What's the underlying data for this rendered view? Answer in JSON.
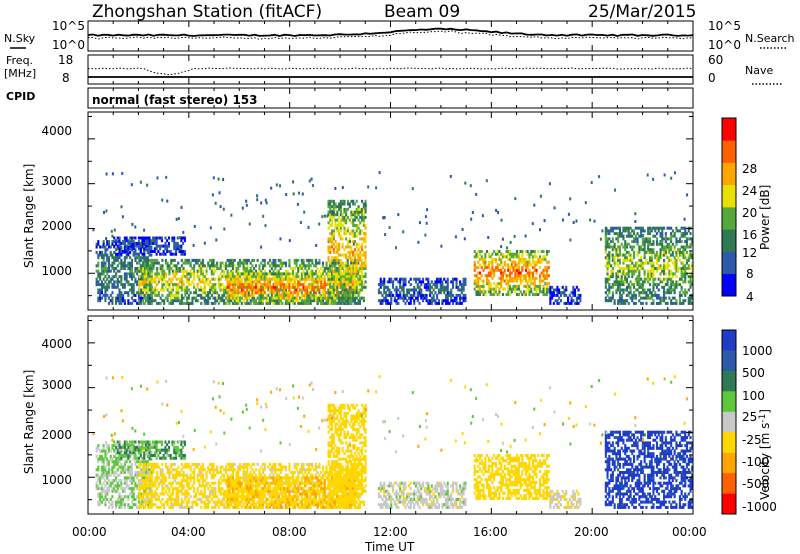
{
  "header": {
    "station": "Zhongshan Station (fitACF)",
    "beam": "Beam 09",
    "date": "25/Mar/2015"
  },
  "noise_panel": {
    "left_label": "N.Sky",
    "right_label": "N.Search",
    "ticks": [
      "10^5",
      "10^0"
    ]
  },
  "freq_panel": {
    "left_label_1": "Freq.",
    "left_label_2": "[MHz]",
    "left_ticks": [
      "18",
      "8"
    ],
    "right_label": "Nave",
    "right_ticks": [
      "60",
      "0"
    ]
  },
  "cpid": {
    "label": "CPID",
    "text": "normal (fast stereo) 153"
  },
  "power_panel": {
    "ylabel": "Slant Range [km]",
    "yticks": [
      "4000",
      "3000",
      "2000",
      "1000"
    ],
    "colorbar_label": "Power [dB]",
    "colorbar_ticks": [
      "28",
      "24",
      "20",
      "16",
      "12",
      "8",
      "4"
    ],
    "colors": [
      "#0000ff",
      "#2a5aa8",
      "#2f7a52",
      "#55a83a",
      "#e8e000",
      "#ffa500",
      "#ff6000",
      "#ff0000"
    ]
  },
  "velocity_panel": {
    "ylabel": "Slant Range [km]",
    "yticks": [
      "4000",
      "3000",
      "2000",
      "1000"
    ],
    "colorbar_label": "Velocity [m s",
    "colorbar_sup": "-1",
    "colorbar_label_end": "]",
    "colorbar_ticks": [
      "1000",
      "500",
      "100",
      "25",
      "-25",
      "-100",
      "-500",
      "-1000"
    ],
    "colors": [
      "#1e3cc8",
      "#2a5aa8",
      "#2f7a52",
      "#5cc83a",
      "#c8c8c8",
      "#ffd700",
      "#ffa500",
      "#ff6000",
      "#ff0000"
    ]
  },
  "xaxis": {
    "ticks": [
      "00:00",
      "04:00",
      "08:00",
      "12:00",
      "16:00",
      "20:00",
      "00:00"
    ],
    "label": "Time UT"
  },
  "chart_data": {
    "type": "heatmap",
    "title": "Zhongshan Station (fitACF) Beam 09 25/Mar/2015",
    "xlabel": "Time UT",
    "ylabel": "Slant Range [km]",
    "xlim_hours": [
      0,
      24
    ],
    "ylim_km": [
      180,
      4600
    ],
    "panels": [
      "N.Sky / N.Search",
      "Freq. / Nave",
      "Power [dB]",
      "Velocity [m s-1]"
    ],
    "power_scale_db": [
      0,
      30
    ],
    "velocity_scale_ms": [
      -1000,
      1000
    ],
    "echo_regions": [
      {
        "t0": 0.3,
        "t1": 2.5,
        "r0": 300,
        "r1": 1700,
        "power": 10,
        "vel": -30
      },
      {
        "t0": 1.0,
        "t1": 3.8,
        "r0": 1400,
        "r1": 1800,
        "power": 5,
        "vel": 20
      },
      {
        "t0": 2.0,
        "t1": 10.8,
        "r0": 300,
        "r1": 1300,
        "power": 18,
        "vel": -150
      },
      {
        "t0": 5.5,
        "t1": 10.6,
        "r0": 300,
        "r1": 1000,
        "power": 24,
        "vel": -450
      },
      {
        "t0": 9.5,
        "t1": 11.0,
        "r0": 300,
        "r1": 2600,
        "power": 20,
        "vel": -300
      },
      {
        "t0": 11.5,
        "t1": 15.0,
        "r0": 300,
        "r1": 900,
        "power": 7,
        "vel": -60
      },
      {
        "t0": 15.3,
        "t1": 18.3,
        "r0": 500,
        "r1": 1500,
        "power": 24,
        "vel": -350
      },
      {
        "t0": 18.3,
        "t1": 19.5,
        "r0": 300,
        "r1": 700,
        "power": 6,
        "vel": -80
      },
      {
        "t0": 20.5,
        "t1": 24.0,
        "r0": 300,
        "r1": 2000,
        "power": 15,
        "vel": 700
      }
    ]
  }
}
